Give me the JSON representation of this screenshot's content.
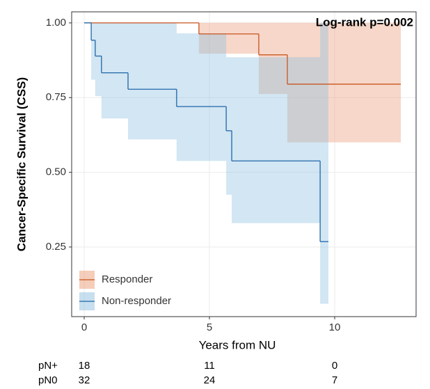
{
  "chart_data": {
    "type": "km",
    "annotation": "Log-rank p=0.002",
    "x_label": "Years from NU",
    "y_label": "Cancer-Specific Survival (CSS)",
    "xlim": [
      -0.5,
      13.25
    ],
    "ylim": [
      0.017,
      1.037
    ],
    "xticks": [
      0,
      5,
      10
    ],
    "yticks": [
      0.25,
      {
        "value": 0.5,
        "label": "0.50"
      },
      0.75,
      {
        "value": 1,
        "label": "1.00"
      }
    ],
    "grid": true,
    "legend_position": "bottom-left",
    "series": [
      {
        "name": "Responder",
        "color": "#c8541e",
        "band_color": "#eb9c78",
        "x": [
          0,
          4.58,
          6.97,
          8.11
        ],
        "x_end": 12.64,
        "values": [
          1,
          0.963,
          0.893,
          0.795
        ],
        "lower": [
          1,
          0.897,
          0.762,
          0.6
        ],
        "upper": [
          1,
          1,
          1,
          1
        ]
      },
      {
        "name": "Non-responder",
        "color": "#1f66a8",
        "band_color": "#8fc0e0",
        "x": [
          0,
          0.28,
          0.44,
          0.69,
          1.75,
          3.69,
          5.67,
          5.89,
          9.42
        ],
        "x_end": 9.75,
        "values": [
          1,
          0.942,
          0.889,
          0.833,
          0.778,
          0.72,
          0.639,
          0.538,
          0.268
        ],
        "lower": [
          1,
          0.81,
          0.755,
          0.68,
          0.61,
          0.538,
          0.425,
          0.33,
          0.06
        ],
        "upper": [
          1,
          1,
          1,
          1,
          1,
          0.965,
          0.885,
          0.885,
          1
        ]
      }
    ],
    "risk_table": {
      "times": [
        0,
        5,
        10
      ],
      "rows": [
        {
          "label": "pN+",
          "counts": [
            18,
            11,
            0
          ]
        },
        {
          "label": "pN0",
          "counts": [
            32,
            24,
            7
          ]
        }
      ]
    }
  }
}
